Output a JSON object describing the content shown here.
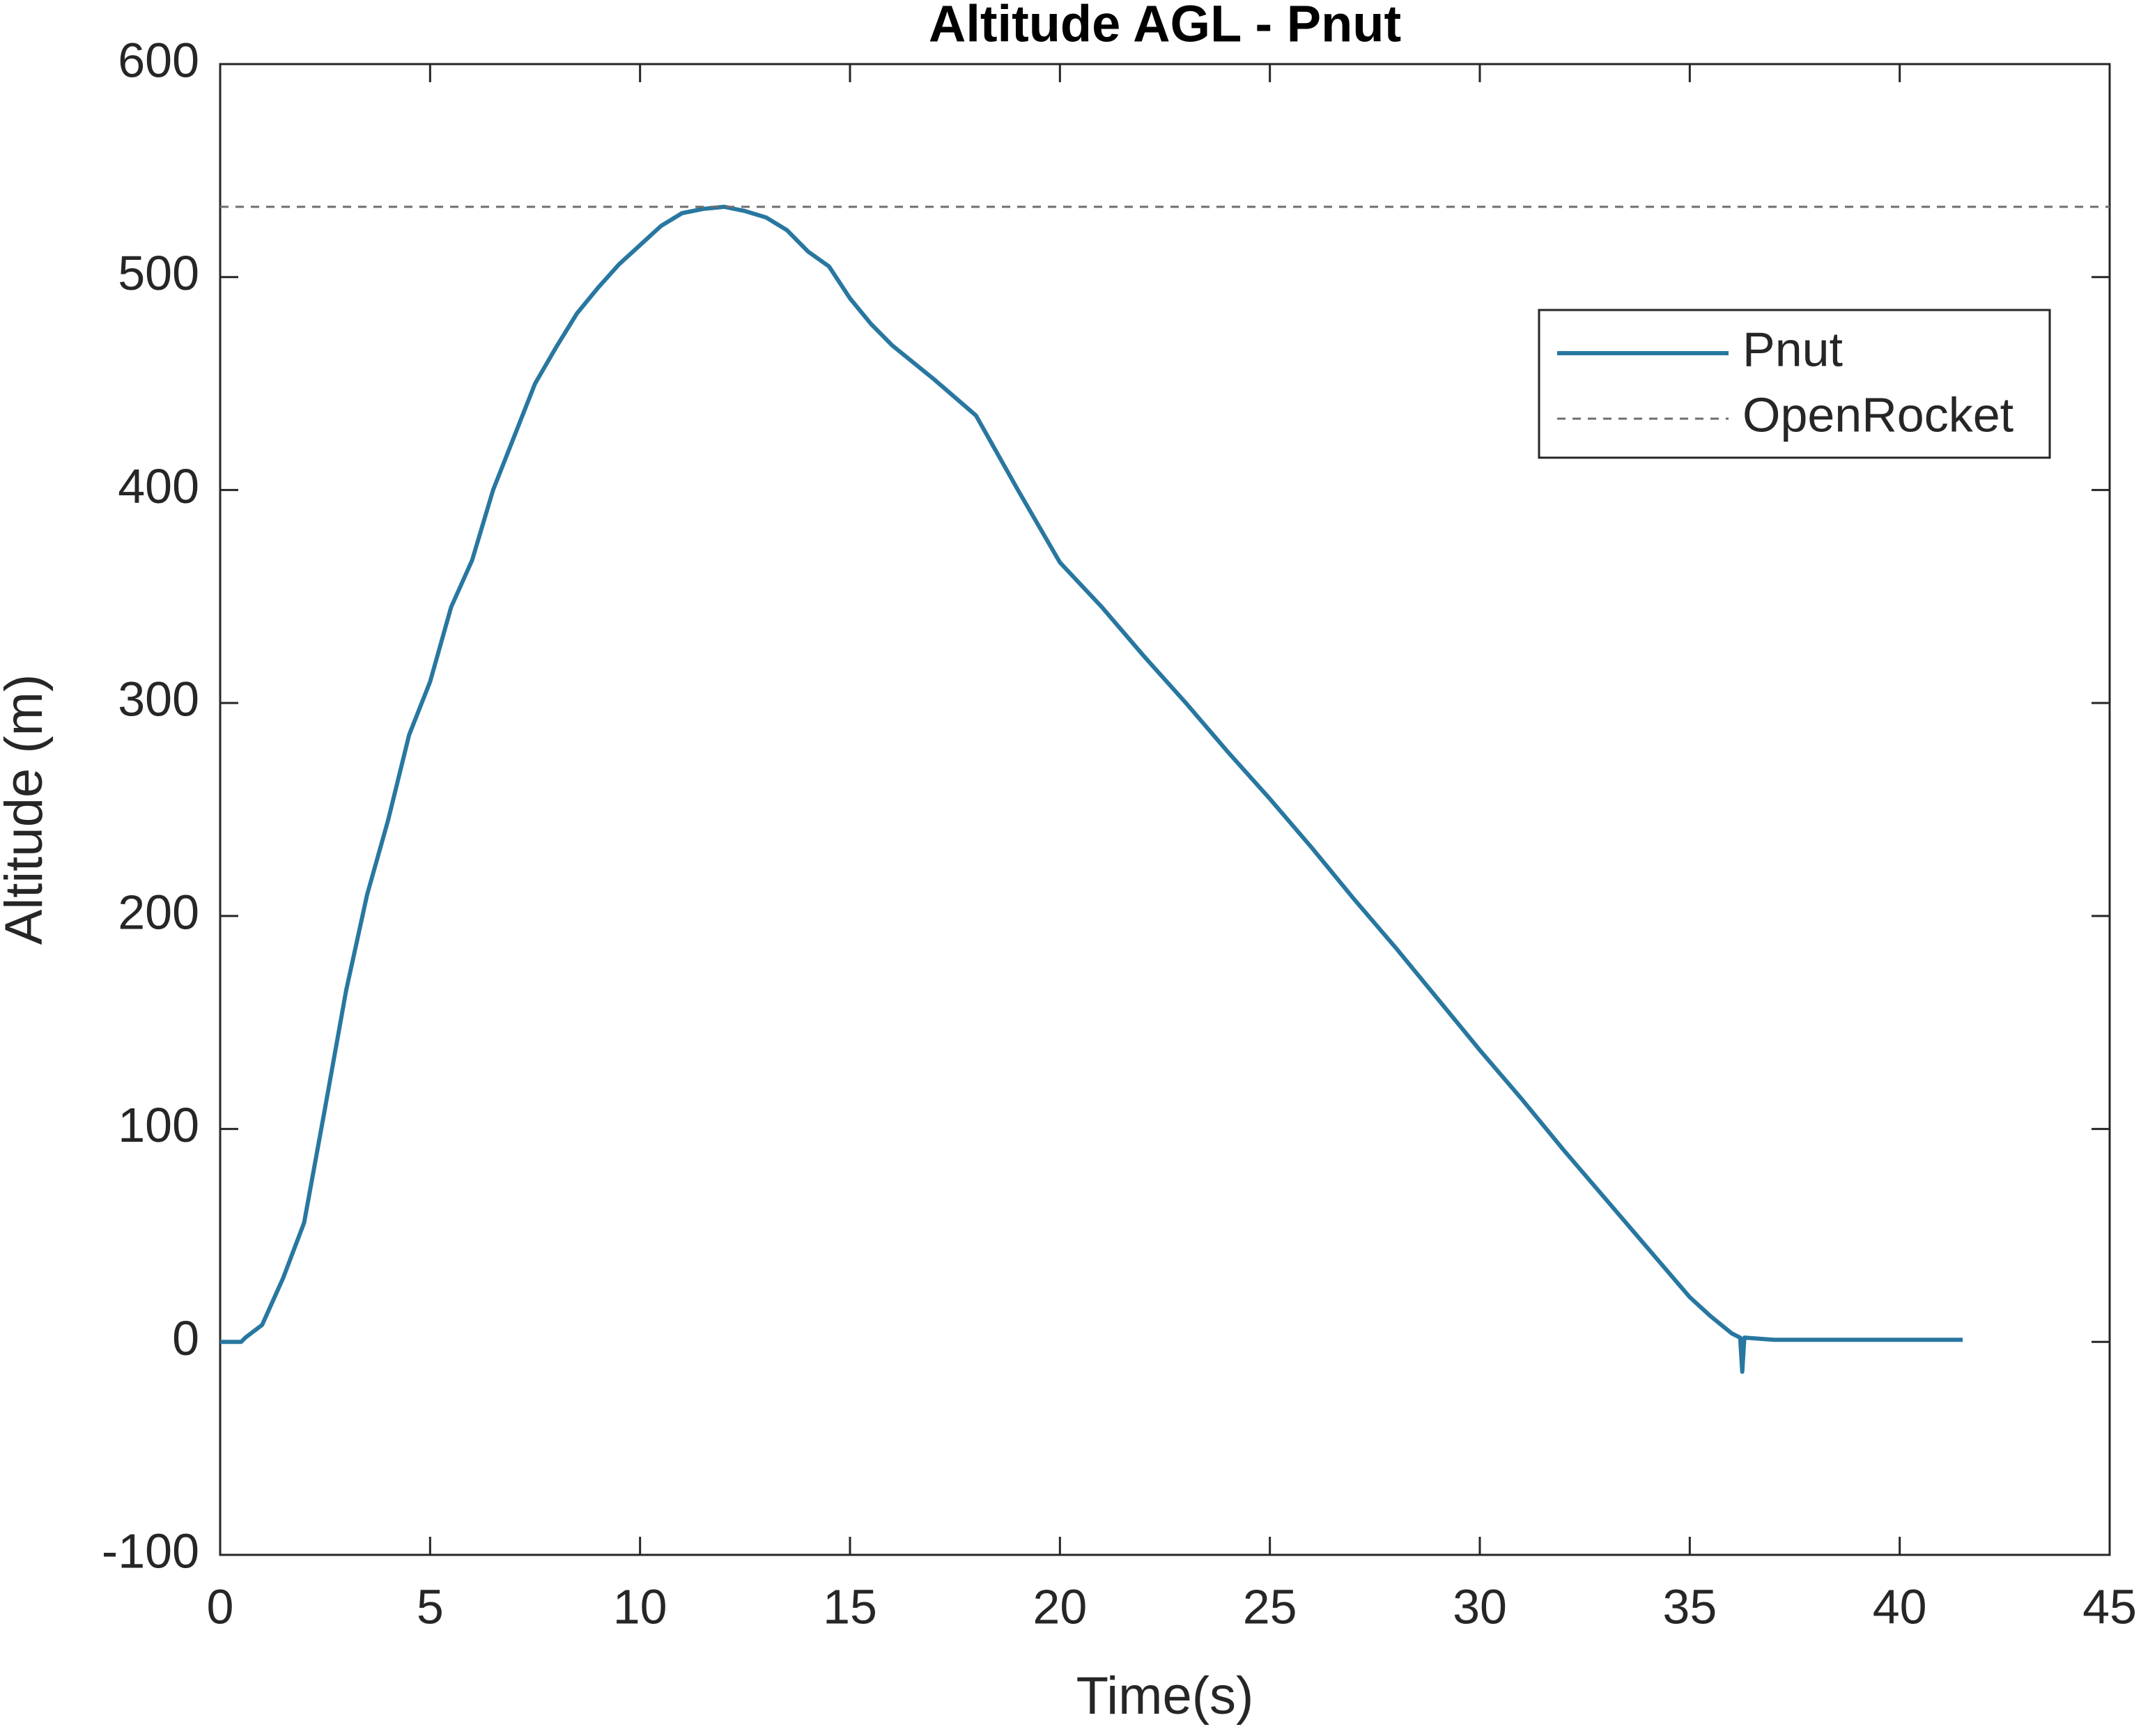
{
  "chart_data": {
    "type": "line",
    "title": "Altitude AGL - Pnut",
    "xlabel": "Time(s)",
    "ylabel": "Altitude (m)",
    "xlim": [
      0,
      45
    ],
    "xticks": [
      0,
      5,
      10,
      15,
      20,
      25,
      30,
      35,
      40,
      45
    ],
    "ylim": [
      -100,
      600
    ],
    "yticks": [
      -100,
      0,
      100,
      200,
      300,
      400,
      500,
      600
    ],
    "grid": false,
    "legend": "northeast",
    "series": [
      {
        "name": "Pnut",
        "color": "#2877a0",
        "style": "solid",
        "x": [
          0,
          0.5,
          0.6,
          1,
          1.5,
          2,
          2.5,
          3,
          3.5,
          4,
          4.5,
          5,
          5.5,
          6,
          6.5,
          7,
          7.5,
          8,
          8.5,
          9,
          9.5,
          10,
          10.5,
          11,
          11.5,
          12,
          12.5,
          13,
          13.5,
          14,
          14.5,
          15,
          15.5,
          16,
          17,
          18,
          19,
          20,
          21,
          22,
          23,
          24,
          25,
          26,
          27,
          28,
          29,
          30,
          31,
          32,
          33,
          34,
          35,
          35.5,
          36,
          36.2,
          36.25,
          36.3,
          37,
          38,
          40,
          41.5
        ],
        "values": [
          0,
          0,
          2,
          8,
          30,
          56,
          110,
          165,
          210,
          245,
          285,
          310,
          345,
          367,
          400,
          425,
          450,
          467,
          483,
          495,
          506,
          515,
          524,
          530,
          532,
          533,
          531,
          528,
          522,
          512,
          505,
          490,
          478,
          468,
          452,
          435,
          400,
          366,
          345,
          322,
          300,
          277,
          255,
          232,
          208,
          185,
          161,
          137,
          114,
          90,
          67,
          44,
          21,
          12,
          4,
          2,
          -14,
          2,
          1,
          1,
          1,
          1
        ]
      },
      {
        "name": "OpenRocket",
        "color": "#6e6e6e",
        "style": "dashed",
        "x": [
          0,
          45
        ],
        "values": [
          533,
          533
        ]
      }
    ]
  }
}
